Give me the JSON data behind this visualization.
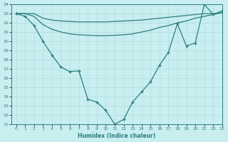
{
  "xlabel": "Humidex (Indice chaleur)",
  "x_values": [
    0,
    1,
    2,
    3,
    4,
    5,
    6,
    7,
    8,
    9,
    10,
    11,
    12,
    13,
    14,
    15,
    16,
    17,
    18,
    19,
    20,
    21,
    22,
    23
  ],
  "line1_y": [
    23.0,
    23.0,
    23.0,
    22.5,
    22.3,
    22.2,
    22.15,
    22.1,
    22.1,
    22.1,
    22.1,
    22.15,
    22.2,
    22.25,
    22.3,
    22.4,
    22.5,
    22.6,
    22.7,
    22.8,
    22.9,
    23.0,
    23.0,
    23.1
  ],
  "line2_y": [
    23.0,
    23.0,
    22.7,
    21.8,
    21.3,
    21.0,
    20.8,
    20.7,
    20.65,
    20.6,
    20.6,
    20.65,
    20.7,
    20.8,
    21.0,
    21.2,
    21.5,
    21.7,
    22.0,
    22.2,
    22.5,
    22.7,
    22.9,
    23.1
  ],
  "line3_y": [
    23.0,
    22.7,
    21.7,
    20.0,
    18.5,
    17.2,
    16.7,
    16.8,
    13.7,
    13.4,
    12.5,
    11.0,
    11.5,
    13.4,
    14.5,
    15.6,
    17.4,
    18.8,
    21.9,
    19.5,
    19.8,
    24.0,
    22.9,
    23.3
  ],
  "color": "#2d7e7e",
  "background_color": "#c8eef0",
  "grid_color": "#b0dede",
  "ylim": [
    11,
    24
  ],
  "xlim": [
    -0.5,
    23
  ],
  "yticks": [
    11,
    12,
    13,
    14,
    15,
    16,
    17,
    18,
    19,
    20,
    21,
    22,
    23,
    24
  ],
  "xticks": [
    0,
    1,
    2,
    3,
    4,
    5,
    6,
    7,
    8,
    9,
    10,
    11,
    12,
    13,
    14,
    15,
    16,
    17,
    18,
    19,
    20,
    21,
    22,
    23
  ]
}
